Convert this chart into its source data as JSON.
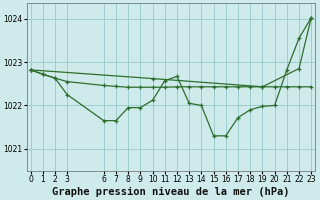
{
  "title": "Graphe pression niveau de la mer (hPa)",
  "bg_color": "#ceeaea",
  "grid_color": "#9ecece",
  "line_color": "#2d6e2d",
  "ylim": [
    1020.5,
    1024.35
  ],
  "yticks": [
    1021,
    1022,
    1023,
    1024
  ],
  "xlim": [
    -0.3,
    23.3
  ],
  "xticks": [
    0,
    1,
    2,
    3,
    6,
    7,
    8,
    9,
    10,
    11,
    12,
    13,
    14,
    15,
    16,
    17,
    18,
    19,
    20,
    21,
    22,
    23
  ],
  "line1_x": [
    0,
    1,
    2,
    3,
    6,
    7,
    8,
    9,
    10,
    11,
    12,
    13,
    14,
    15,
    16,
    17,
    18,
    19,
    20,
    21,
    22,
    23
  ],
  "line1_y": [
    1022.82,
    1022.72,
    1022.63,
    1022.55,
    1022.46,
    1022.44,
    1022.42,
    1022.42,
    1022.42,
    1022.42,
    1022.43,
    1022.43,
    1022.43,
    1022.43,
    1022.43,
    1022.43,
    1022.43,
    1022.43,
    1022.43,
    1022.43,
    1022.43,
    1022.43
  ],
  "line2_x": [
    0,
    1,
    2,
    3,
    6,
    7,
    8,
    9,
    10,
    11,
    12,
    13,
    14,
    15,
    16,
    17,
    18,
    19,
    20,
    21,
    22,
    23
  ],
  "line2_y": [
    1022.82,
    1022.72,
    1022.63,
    1022.25,
    1021.65,
    1021.65,
    1021.95,
    1021.95,
    1022.12,
    1022.57,
    1022.67,
    1022.05,
    1022.0,
    1021.3,
    1021.3,
    1021.72,
    1021.9,
    1021.98,
    1022.0,
    1022.82,
    1023.55,
    1024.02
  ],
  "line3_x": [
    0,
    10,
    19,
    22,
    23
  ],
  "line3_y": [
    1022.82,
    1022.62,
    1022.43,
    1022.85,
    1024.02
  ],
  "title_fontsize": 7.5,
  "tick_fontsize": 5.5
}
